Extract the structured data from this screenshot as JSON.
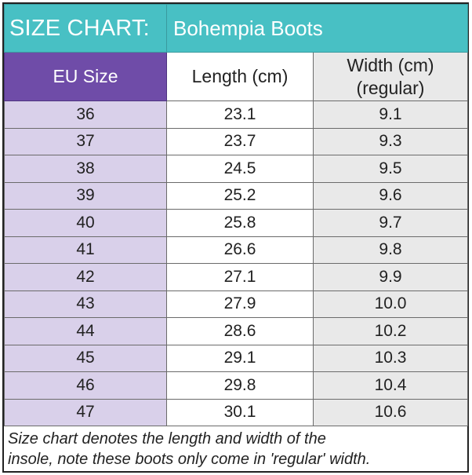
{
  "banner": {
    "title": "SIZE CHART:",
    "brand": "Bohempia Boots"
  },
  "columns": {
    "eu": "EU Size",
    "length": "Length (cm)",
    "width_line1": "Width (cm)",
    "width_line2": "(regular)"
  },
  "rows": [
    {
      "eu": "36",
      "length": "23.1",
      "width": "9.1"
    },
    {
      "eu": "37",
      "length": "23.7",
      "width": "9.3"
    },
    {
      "eu": "38",
      "length": "24.5",
      "width": "9.5"
    },
    {
      "eu": "39",
      "length": "25.2",
      "width": "9.6"
    },
    {
      "eu": "40",
      "length": "25.8",
      "width": "9.7"
    },
    {
      "eu": "41",
      "length": "26.6",
      "width": "9.8"
    },
    {
      "eu": "42",
      "length": "27.1",
      "width": "9.9"
    },
    {
      "eu": "43",
      "length": "27.9",
      "width": "10.0"
    },
    {
      "eu": "44",
      "length": "28.6",
      "width": "10.2"
    },
    {
      "eu": "45",
      "length": "29.1",
      "width": "10.3"
    },
    {
      "eu": "46",
      "length": "29.8",
      "width": "10.4"
    },
    {
      "eu": "47",
      "length": "30.1",
      "width": "10.6"
    }
  ],
  "note": {
    "line1": "Size chart denotes the length and width of the",
    "line2": "insole, note these boots only come in 'regular' width."
  },
  "colors": {
    "banner": "#48c0c4",
    "eu_header": "#6f4ca8",
    "eu_cells": "#d9d0ea",
    "width_cells": "#e9e9e9"
  }
}
